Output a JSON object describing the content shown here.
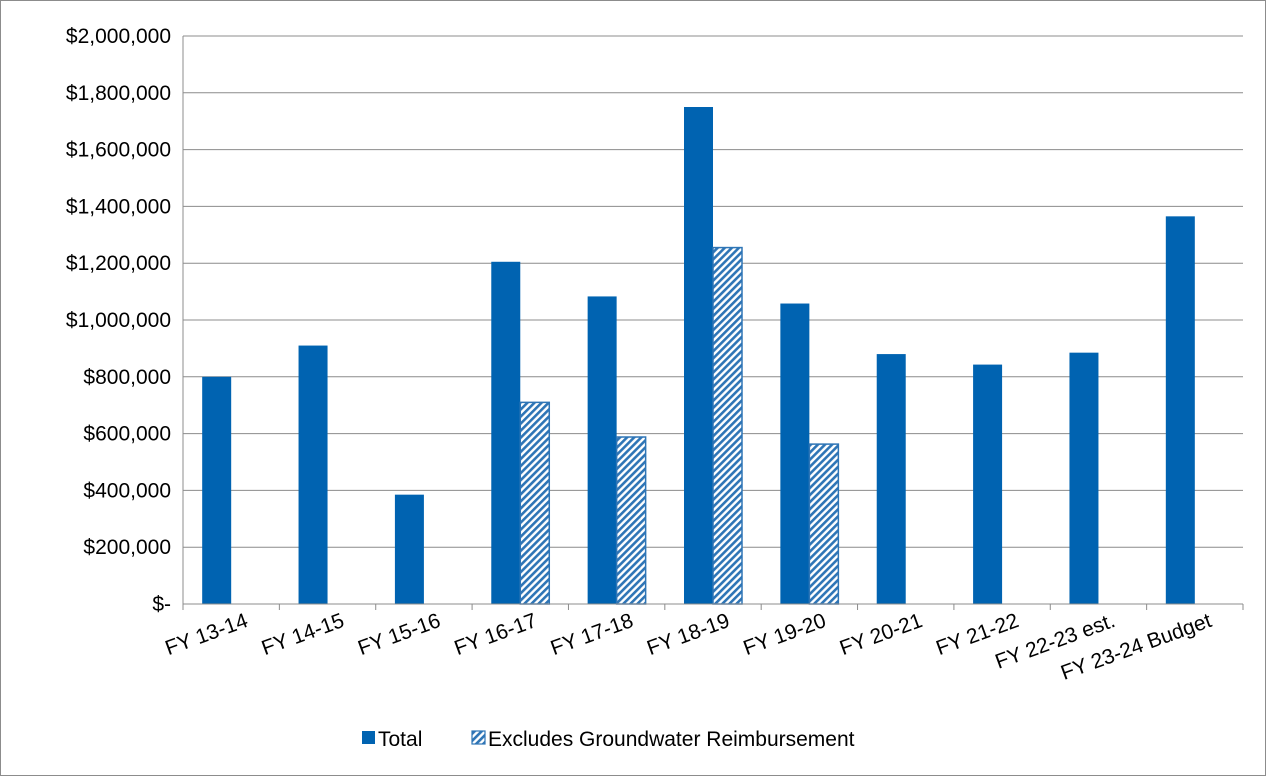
{
  "chart_data": {
    "type": "bar",
    "title": "",
    "xlabel": "",
    "ylabel": "",
    "categories": [
      "FY 13-14",
      "FY 14-15",
      "FY 15-16",
      "FY 16-17",
      "FY 17-18",
      "FY 18-19",
      "FY 19-20",
      "FY 20-21",
      "FY 21-22",
      "FY 22-23 est.",
      "FY 23-24 Budget"
    ],
    "series": [
      {
        "name": "Total",
        "color": "#0063B1",
        "fill": "solid",
        "values": [
          800000,
          910000,
          385000,
          1205000,
          1083000,
          1750000,
          1058000,
          880000,
          843000,
          885000,
          1365000
        ]
      },
      {
        "name": "Excludes Groundwater Reimbursement",
        "color": "#2E75B6",
        "fill": "hatched",
        "values": [
          null,
          null,
          null,
          710000,
          588000,
          1255000,
          563000,
          null,
          null,
          null,
          null
        ]
      }
    ],
    "ylim": [
      0,
      2000000
    ],
    "yticks": [
      0,
      200000,
      400000,
      600000,
      800000,
      1000000,
      1200000,
      1400000,
      1600000,
      1800000,
      2000000
    ],
    "ytick_labels": [
      "$-",
      "$200,000",
      "$400,000",
      "$600,000",
      "$800,000",
      "$1,000,000",
      "$1,200,000",
      "$1,400,000",
      "$1,600,000",
      "$1,800,000",
      "$2,000,000"
    ],
    "grid": true,
    "legend_position": "bottom"
  }
}
